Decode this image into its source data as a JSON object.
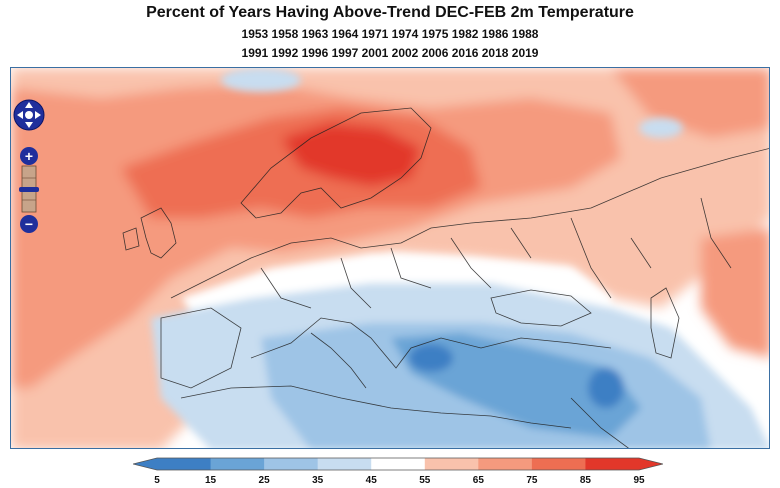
{
  "header": {
    "title": "Percent of Years Having Above-Trend DEC-FEB 2m Temperature",
    "years_line1": "1953 1958 1963 1964 1971 1974 1975 1982 1986 1988",
    "years_line2": "1991 1992 1996 1997 2001 2002 2006 2016 2018 2019"
  },
  "legend": {
    "ticks": [
      "5",
      "15",
      "25",
      "35",
      "45",
      "55",
      "65",
      "75",
      "85",
      "95"
    ],
    "colors": [
      "#3d7fc4",
      "#6aa4d6",
      "#9ec4e6",
      "#c8ddf0",
      "#ffffff",
      "#f9c2ac",
      "#f59a7e",
      "#ee6e52",
      "#e2372a"
    ]
  },
  "map_controls": {
    "pan_icon": "pan-arrows-icon",
    "zoom_in": "+",
    "zoom_out": "−"
  }
}
